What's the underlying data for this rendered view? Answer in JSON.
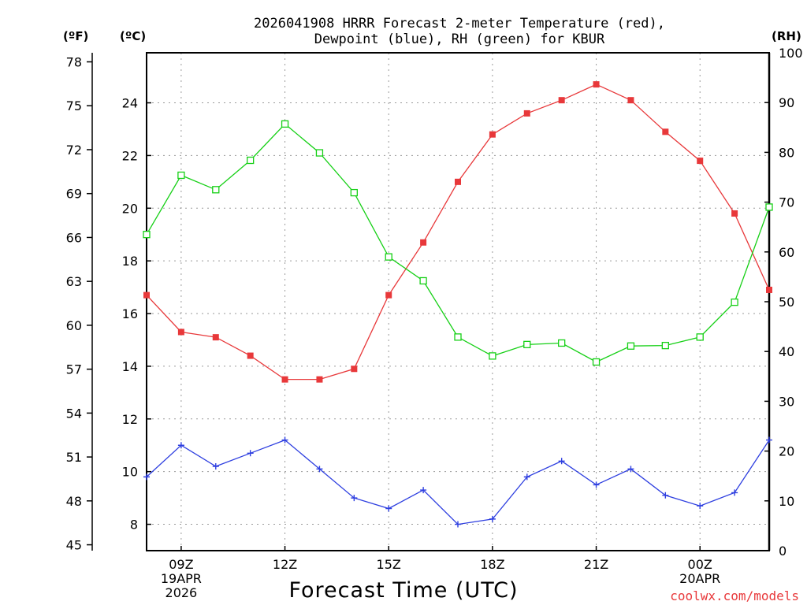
{
  "chart_data": {
    "type": "line",
    "title_line1": "2026041908 HRRR Forecast 2-meter Temperature (red),",
    "title_line2": "Dewpoint (blue), RH (green) for KBUR",
    "unit_f": "(ºF)",
    "unit_c": "(ºC)",
    "unit_rh": "(RH)",
    "xlabel": "Forecast Time (UTC)",
    "credit": "coolwx.com/models",
    "x": [
      8,
      9,
      10,
      11,
      12,
      13,
      14,
      15,
      16,
      17,
      18,
      19,
      20,
      21,
      22,
      23,
      24,
      25,
      26
    ],
    "x_range": [
      8,
      26
    ],
    "x_ticks": [
      {
        "x": 9,
        "lines": [
          "09Z",
          "19APR",
          "2026"
        ]
      },
      {
        "x": 12,
        "lines": [
          "12Z"
        ]
      },
      {
        "x": 15,
        "lines": [
          "15Z"
        ]
      },
      {
        "x": 18,
        "lines": [
          "18Z"
        ]
      },
      {
        "x": 21,
        "lines": [
          "21Z"
        ]
      },
      {
        "x": 24,
        "lines": [
          "00Z",
          "20APR"
        ]
      }
    ],
    "y_celsius_range": [
      7.0,
      25.9
    ],
    "y_celsius_ticks": [
      8,
      10,
      12,
      14,
      16,
      18,
      20,
      22,
      24
    ],
    "y_fahrenheit_ticks": [
      45,
      48,
      51,
      54,
      57,
      60,
      63,
      66,
      69,
      72,
      75,
      78
    ],
    "y_rh_range": [
      0,
      100
    ],
    "y_rh_ticks": [
      0,
      10,
      20,
      30,
      40,
      50,
      60,
      70,
      80,
      90,
      100
    ],
    "grid": true,
    "series": [
      {
        "name": "Temperature",
        "axis": "celsius",
        "color": "#e8383a",
        "marker": "filled-square",
        "values": [
          16.7,
          15.3,
          15.1,
          14.4,
          13.5,
          13.5,
          13.9,
          16.7,
          18.7,
          21.0,
          22.8,
          23.6,
          24.1,
          24.7,
          24.1,
          22.9,
          21.8,
          19.8,
          16.9
        ]
      },
      {
        "name": "Dewpoint",
        "axis": "celsius",
        "color": "#2e3fe0",
        "marker": "plus",
        "values": [
          9.8,
          11.0,
          10.2,
          10.7,
          11.2,
          10.1,
          9.0,
          8.6,
          9.3,
          8.0,
          8.2,
          9.8,
          10.4,
          9.5,
          10.1,
          9.1,
          8.7,
          9.2,
          11.2
        ]
      },
      {
        "name": "RH",
        "axis": "rh",
        "color": "#16d016",
        "marker": "open-square",
        "values": [
          63.5,
          75.4,
          72.5,
          78.4,
          85.7,
          79.9,
          71.9,
          59.0,
          54.2,
          42.9,
          39.1,
          41.4,
          41.7,
          37.9,
          41.1,
          41.2,
          42.9,
          49.9,
          69.0
        ]
      }
    ]
  }
}
